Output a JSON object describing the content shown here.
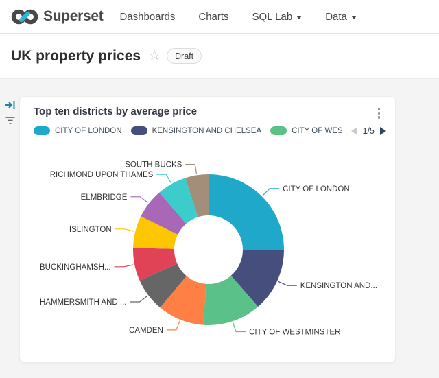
{
  "header": {
    "brand": "Superset",
    "nav": [
      {
        "label": "Dashboards",
        "has_dropdown": false
      },
      {
        "label": "Charts",
        "has_dropdown": false
      },
      {
        "label": "SQL Lab",
        "has_dropdown": true
      },
      {
        "label": "Data",
        "has_dropdown": true
      }
    ]
  },
  "page": {
    "title": "UK property prices",
    "badge": "Draft",
    "star_icon": "☆"
  },
  "side_rail": {
    "expand_icon_color": "#1A85A0",
    "filter_icon_color": "#666666"
  },
  "card": {
    "title": "Top ten districts by average price",
    "menu_icon": "kebab-vertical",
    "legend": {
      "items": [
        {
          "label": "CITY OF LONDON",
          "color": "#1FA8C9"
        },
        {
          "label": "KENSINGTON AND CHELSEA",
          "color": "#454E7C"
        },
        {
          "label": "CITY OF WES",
          "color": "#5AC189"
        }
      ],
      "page_indicator": "1/5"
    }
  },
  "chart_data": {
    "type": "pie",
    "subtype": "donut",
    "title": "Top ten districts by average price",
    "inner_radius_ratio": 0.45,
    "start_angle_deg": 0,
    "direction": "clockwise",
    "legend_position": "top",
    "slices": [
      {
        "label": "CITY OF LONDON",
        "display_label": "CITY OF LONDON",
        "value_pct": 25.0,
        "color": "#1FA8C9"
      },
      {
        "label": "KENSINGTON AND CHELSEA",
        "display_label": "KENSINGTON AND...",
        "value_pct": 13.6,
        "color": "#454E7C"
      },
      {
        "label": "CITY OF WESTMINSTER",
        "display_label": "CITY OF WESTMINSTER",
        "value_pct": 12.5,
        "color": "#5AC189"
      },
      {
        "label": "CAMDEN",
        "display_label": "CAMDEN",
        "value_pct": 10.0,
        "color": "#FF7F44"
      },
      {
        "label": "HAMMERSMITH AND ...",
        "display_label": "HAMMERSMITH AND ...",
        "value_pct": 7.2,
        "color": "#666666"
      },
      {
        "label": "BUCKINGHAMSH...",
        "display_label": "BUCKINGHAMSH...",
        "value_pct": 7.1,
        "color": "#E04355"
      },
      {
        "label": "ISLINGTON",
        "display_label": "ISLINGTON",
        "value_pct": 6.9,
        "color": "#FCC700"
      },
      {
        "label": "ELMBRIDGE",
        "display_label": "ELMBRIDGE",
        "value_pct": 6.4,
        "color": "#A868B7"
      },
      {
        "label": "RICHMOND UPON THAMES",
        "display_label": "RICHMOND UPON THAMES",
        "value_pct": 6.3,
        "color": "#3CCCCB"
      },
      {
        "label": "SOUTH BUCKS",
        "display_label": "SOUTH BUCKS",
        "value_pct": 5.0,
        "color": "#A38F79"
      }
    ]
  }
}
